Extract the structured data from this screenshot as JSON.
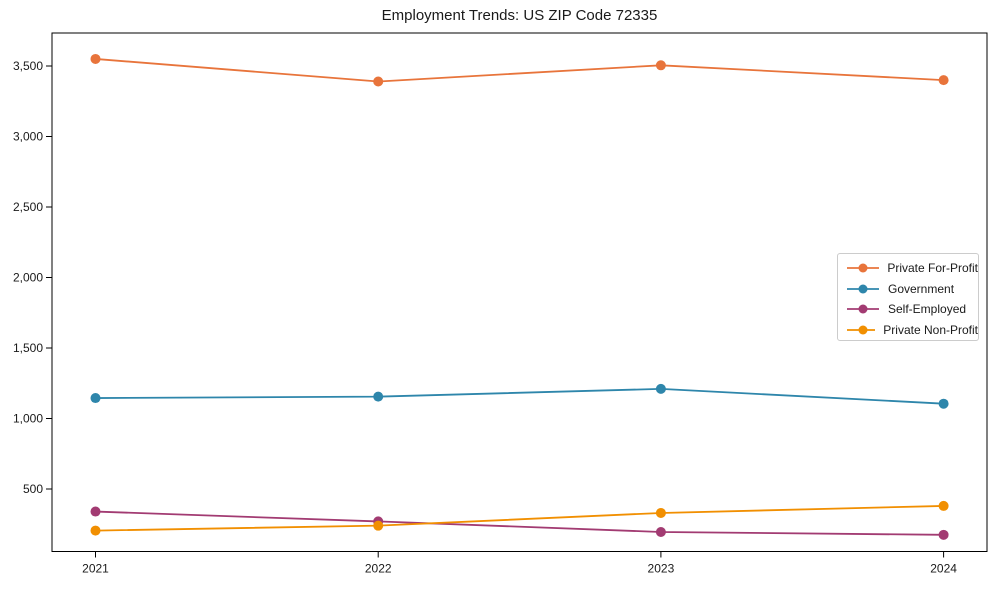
{
  "chart_data": {
    "type": "line",
    "title": "Employment Trends: US ZIP Code 72335",
    "xlabel": "",
    "ylabel": "",
    "x": [
      2021,
      2022,
      2023,
      2024
    ],
    "yticks": [
      500,
      1000,
      1500,
      2000,
      2500,
      3000,
      3500
    ],
    "ytick_labels": [
      "500",
      "1,000",
      "1,500",
      "2,000",
      "2,500",
      "3,000",
      "3,500"
    ],
    "ylim": [
      50,
      3730
    ],
    "grid": false,
    "marker": "circle",
    "legend_position": "center-right",
    "axis_color": "#000000",
    "text_color": "#1a1a1a",
    "series": [
      {
        "name": "Private For-Profit",
        "color": "#E8743B",
        "values": [
          3550,
          3390,
          3505,
          3400
        ]
      },
      {
        "name": "Government",
        "color": "#2E86AB",
        "values": [
          1145,
          1155,
          1210,
          1105
        ]
      },
      {
        "name": "Self-Employed",
        "color": "#A23B72",
        "values": [
          340,
          270,
          195,
          175
        ]
      },
      {
        "name": "Private Non-Profit",
        "color": "#F18F01",
        "values": [
          205,
          240,
          330,
          380
        ]
      }
    ]
  }
}
